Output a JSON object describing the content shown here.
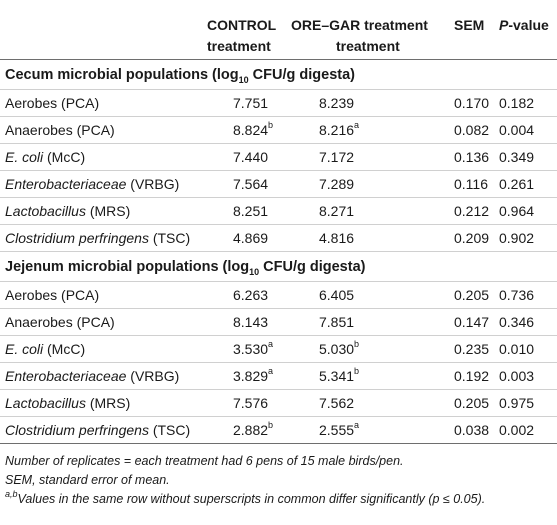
{
  "header": {
    "col_control": [
      "CONTROL",
      "treatment"
    ],
    "col_ore": [
      "ORE–GAR treatment",
      "treatment"
    ],
    "col_sem": "SEM",
    "col_p_italic": "P",
    "col_p_rest": "-value"
  },
  "sections": [
    {
      "title_pre": "Cecum microbial populations (log",
      "title_sub": "10",
      "title_post": " CFU/g digesta)",
      "rows": [
        {
          "label": "Aerobes (PCA)",
          "italic": "",
          "rest": "",
          "control": "7.751",
          "control_sup": "",
          "ore": "8.239",
          "ore_sup": "",
          "sem": "0.170",
          "p": "0.182"
        },
        {
          "label": "Anaerobes (PCA)",
          "italic": "",
          "rest": "",
          "control": "8.824",
          "control_sup": "b",
          "ore": "8.216",
          "ore_sup": "a",
          "sem": "0.082",
          "p": "0.004"
        },
        {
          "label": "",
          "italic": "E. coli",
          "rest": " (McC)",
          "control": "7.440",
          "control_sup": "",
          "ore": "7.172",
          "ore_sup": "",
          "sem": "0.136",
          "p": "0.349"
        },
        {
          "label": "",
          "italic": "Enterobacteriaceae",
          "rest": " (VRBG)",
          "control": "7.564",
          "control_sup": "",
          "ore": "7.289",
          "ore_sup": "",
          "sem": "0.116",
          "p": "0.261"
        },
        {
          "label": "",
          "italic": "Lactobacillus",
          "rest": " (MRS)",
          "control": "8.251",
          "control_sup": "",
          "ore": "8.271",
          "ore_sup": "",
          "sem": "0.212",
          "p": "0.964"
        },
        {
          "label": "",
          "italic": "Clostridium perfringens",
          "rest": " (TSC)",
          "control": "4.869",
          "control_sup": "",
          "ore": "4.816",
          "ore_sup": "",
          "sem": "0.209",
          "p": "0.902"
        }
      ]
    },
    {
      "title_pre": "Jejenum microbial populations (log",
      "title_sub": "10",
      "title_post": " CFU/g digesta)",
      "rows": [
        {
          "label": "Aerobes (PCA)",
          "italic": "",
          "rest": "",
          "control": "6.263",
          "control_sup": "",
          "ore": "6.405",
          "ore_sup": "",
          "sem": "0.205",
          "p": "0.736"
        },
        {
          "label": "Anaerobes (PCA)",
          "italic": "",
          "rest": "",
          "control": "8.143",
          "control_sup": "",
          "ore": "7.851",
          "ore_sup": "",
          "sem": "0.147",
          "p": "0.346"
        },
        {
          "label": "",
          "italic": "E. coli",
          "rest": " (McC)",
          "control": "3.530",
          "control_sup": "a",
          "ore": "5.030",
          "ore_sup": "b",
          "sem": "0.235",
          "p": "0.010"
        },
        {
          "label": "",
          "italic": "Enterobacteriaceae",
          "rest": " (VRBG)",
          "control": "3.829",
          "control_sup": "a",
          "ore": "5.341",
          "ore_sup": "b",
          "sem": "0.192",
          "p": "0.003"
        },
        {
          "label": "",
          "italic": "Lactobacillus",
          "rest": " (MRS)",
          "control": "7.576",
          "control_sup": "",
          "ore": "7.562",
          "ore_sup": "",
          "sem": "0.205",
          "p": "0.975"
        },
        {
          "label": "",
          "italic": "Clostridium perfringens",
          "rest": " (TSC)",
          "control": "2.882",
          "control_sup": "b",
          "ore": "2.555",
          "ore_sup": "a",
          "sem": "0.038",
          "p": "0.002"
        }
      ]
    }
  ],
  "notes": {
    "line1": "Number of replicates = each treatment had 6 pens of 15 male birds/pen.",
    "line2": "SEM, standard error of mean.",
    "line3_sup": "a,b",
    "line3": "Values in the same row without superscripts in common differ significantly (p ≤ 0.05)."
  }
}
